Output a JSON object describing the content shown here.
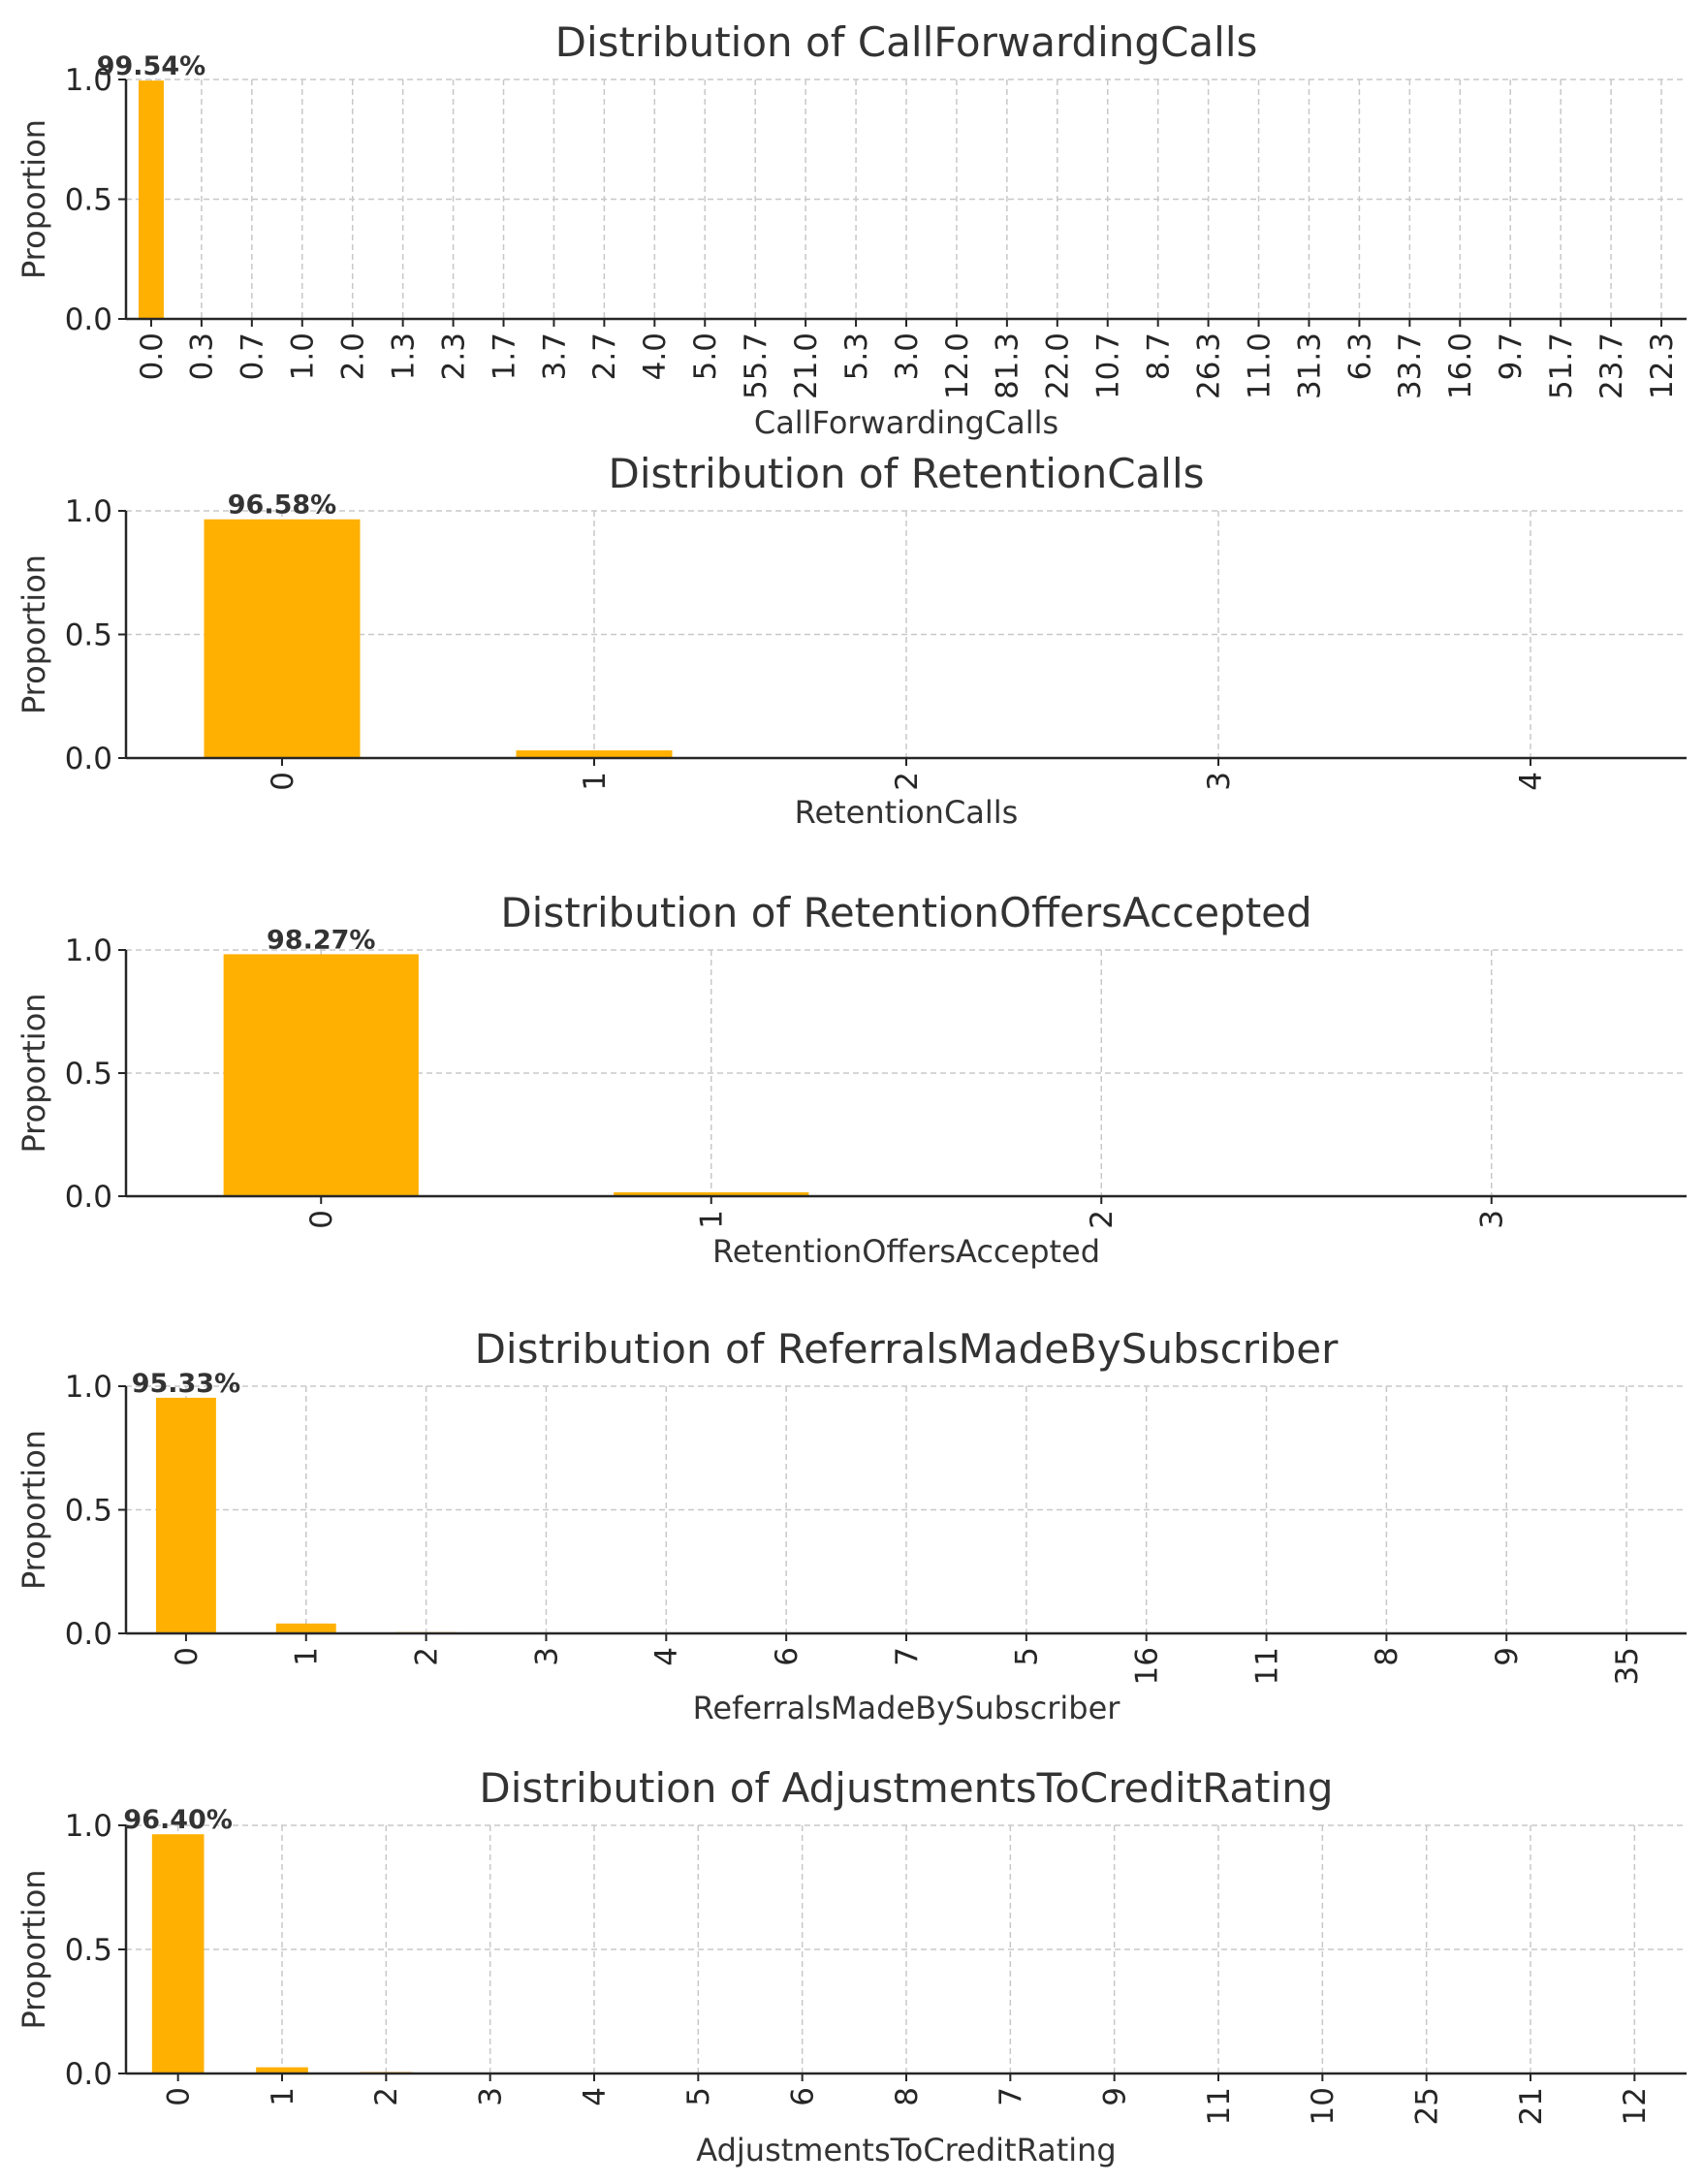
{
  "chart_data": [
    {
      "type": "bar",
      "title": "Distribution of CallForwardingCalls",
      "xlabel": "CallForwardingCalls",
      "ylabel": "Proportion",
      "ylim": [
        0,
        1.0
      ],
      "yticks": [
        "0.0",
        "0.5",
        "1.0"
      ],
      "grid": true,
      "color": "#FFB000",
      "categories": [
        "0.0",
        "0.3",
        "0.7",
        "1.0",
        "2.0",
        "1.3",
        "2.3",
        "1.7",
        "3.7",
        "2.7",
        "4.0",
        "5.0",
        "55.7",
        "21.0",
        "5.3",
        "3.0",
        "12.0",
        "81.3",
        "22.0",
        "10.7",
        "8.7",
        "26.3",
        "11.0",
        "31.3",
        "6.3",
        "33.7",
        "16.0",
        "9.7",
        "51.7",
        "23.7",
        "12.3"
      ],
      "values": [
        0.9954,
        0.0015,
        0.0008,
        0.0005,
        0.0003,
        0.0003,
        0.0002,
        0.0002,
        0.0001,
        0.0001,
        0.0001,
        0.0001,
        0.0001,
        0.0001,
        0.0001,
        0.0001,
        0.0001,
        0.0001,
        0.0001,
        0.0001,
        0.0001,
        0.0001,
        0.0001,
        0.0001,
        0.0001,
        0.0001,
        0.0001,
        0.0001,
        0.0001,
        0.0001,
        0.0001
      ],
      "annotation": {
        "index": 0,
        "text": "99.54%"
      }
    },
    {
      "type": "bar",
      "title": "Distribution of RetentionCalls",
      "xlabel": "RetentionCalls",
      "ylabel": "Proportion",
      "ylim": [
        0,
        1.0
      ],
      "yticks": [
        "0.0",
        "0.5",
        "1.0"
      ],
      "grid": true,
      "color": "#FFB000",
      "categories": [
        "0",
        "1",
        "2",
        "3",
        "4"
      ],
      "values": [
        0.9658,
        0.031,
        0.0025,
        0.0005,
        0.0002
      ],
      "annotation": {
        "index": 0,
        "text": "96.58%"
      }
    },
    {
      "type": "bar",
      "title": "Distribution of RetentionOffersAccepted",
      "xlabel": "RetentionOffersAccepted",
      "ylabel": "Proportion",
      "ylim": [
        0,
        1.0
      ],
      "yticks": [
        "0.0",
        "0.5",
        "1.0"
      ],
      "grid": true,
      "color": "#FFB000",
      "categories": [
        "0",
        "1",
        "2",
        "3"
      ],
      "values": [
        0.9827,
        0.016,
        0.0011,
        0.0002
      ],
      "annotation": {
        "index": 0,
        "text": "98.27%"
      }
    },
    {
      "type": "bar",
      "title": "Distribution of ReferralsMadeBySubscriber",
      "xlabel": "ReferralsMadeBySubscriber",
      "ylabel": "Proportion",
      "ylim": [
        0,
        1.0
      ],
      "yticks": [
        "0.0",
        "0.5",
        "1.0"
      ],
      "grid": true,
      "color": "#FFB000",
      "categories": [
        "0",
        "1",
        "2",
        "3",
        "4",
        "6",
        "7",
        "5",
        "16",
        "11",
        "8",
        "9",
        "35"
      ],
      "values": [
        0.9533,
        0.04,
        0.005,
        0.001,
        0.0003,
        0.0002,
        0.0001,
        0.0001,
        0.0001,
        0.0001,
        0.0001,
        0.0001,
        0.0001
      ],
      "annotation": {
        "index": 0,
        "text": "95.33%"
      }
    },
    {
      "type": "bar",
      "title": "Distribution of AdjustmentsToCreditRating",
      "xlabel": "AdjustmentsToCreditRating",
      "ylabel": "Proportion",
      "ylim": [
        0,
        1.0
      ],
      "yticks": [
        "0.0",
        "0.5",
        "1.0"
      ],
      "grid": true,
      "color": "#FFB000",
      "categories": [
        "0",
        "1",
        "2",
        "3",
        "4",
        "5",
        "6",
        "8",
        "7",
        "9",
        "11",
        "10",
        "25",
        "21",
        "12"
      ],
      "values": [
        0.964,
        0.025,
        0.006,
        0.002,
        0.001,
        0.0005,
        0.0003,
        0.0002,
        0.0002,
        0.0001,
        0.0001,
        0.0001,
        0.0001,
        0.0001,
        0.0001
      ],
      "annotation": {
        "index": 0,
        "text": "96.40%"
      }
    }
  ]
}
